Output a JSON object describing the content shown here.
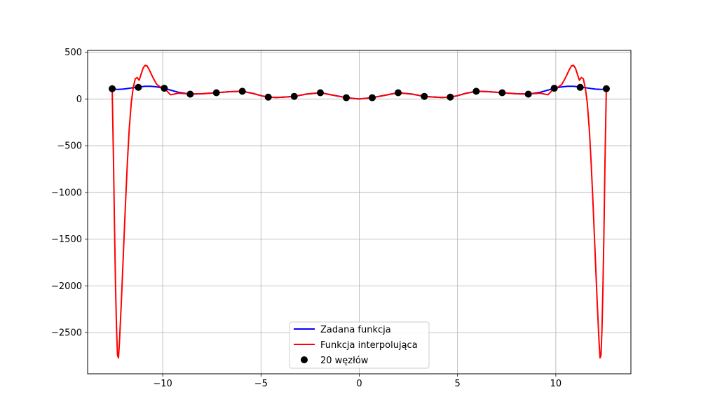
{
  "chart_data": {
    "type": "line",
    "title": "",
    "xlabel": "",
    "ylabel": "",
    "xlim": [
      -13.82,
      13.82
    ],
    "ylim": [
      -2940,
      520
    ],
    "grid": true,
    "x_ticks": [
      -10,
      -5,
      0,
      5,
      10
    ],
    "y_ticks": [
      500,
      0,
      -500,
      -1000,
      -1500,
      -2000,
      -2500
    ],
    "x_tick_labels": [
      "−10",
      "−5",
      "0",
      "5",
      "10"
    ],
    "y_tick_labels": [
      "500",
      "0",
      "−500",
      "−1000",
      "−1500",
      "−2000",
      "−2500"
    ],
    "series": [
      {
        "name": "Zadana funkcja",
        "color": "#0000ff",
        "x": [
          -12.57,
          -12.3,
          -12.0,
          -11.6,
          -11.2,
          -10.9,
          -10.6,
          -10.3,
          -9.92,
          -9.6,
          -9.2,
          -8.6,
          -8.0,
          -7.27,
          -6.6,
          -5.95,
          -5.4,
          -4.9,
          -4.63,
          -4.2,
          -3.7,
          -3.31,
          -2.7,
          -1.98,
          -1.3,
          -0.66,
          0.0,
          0.66,
          1.3,
          1.98,
          2.7,
          3.31,
          3.7,
          4.2,
          4.63,
          4.9,
          5.4,
          5.95,
          6.6,
          7.27,
          8.0,
          8.6,
          9.2,
          9.6,
          9.92,
          10.3,
          10.6,
          10.9,
          11.2,
          11.6,
          12.0,
          12.3,
          12.57
        ],
        "y": [
          110,
          102,
          106,
          118,
          128,
          136,
          136,
          130,
          115,
          95,
          72,
          52,
          56,
          67,
          78,
          83,
          60,
          30,
          20,
          16,
          22,
          28,
          52,
          67,
          40,
          14,
          0,
          14,
          40,
          67,
          52,
          28,
          22,
          16,
          20,
          30,
          60,
          83,
          78,
          67,
          56,
          52,
          72,
          95,
          115,
          130,
          136,
          136,
          128,
          118,
          106,
          102,
          110
        ]
      },
      {
        "name": "Funkcja interpolująca",
        "color": "#ff0000",
        "x": [
          -12.57,
          -12.5,
          -12.45,
          -12.4,
          -12.35,
          -12.3,
          -12.25,
          -12.2,
          -12.1,
          -12.0,
          -11.9,
          -11.8,
          -11.7,
          -11.6,
          -11.5,
          -11.4,
          -11.3,
          -11.2,
          -11.1,
          -11.0,
          -10.9,
          -10.8,
          -10.7,
          -10.6,
          -10.5,
          -10.3,
          -10.1,
          -9.92,
          -9.6,
          -9.2,
          -8.6,
          -8.0,
          -7.27,
          -6.6,
          -5.95,
          -5.4,
          -4.9,
          -4.63,
          -4.2,
          -3.7,
          -3.31,
          -2.7,
          -1.98,
          -1.3,
          -0.66,
          0.0,
          0.66,
          1.3,
          1.98,
          2.7,
          3.31,
          3.7,
          4.2,
          4.63,
          4.9,
          5.4,
          5.95,
          6.6,
          7.27,
          8.0,
          8.6,
          9.2,
          9.6,
          9.92,
          10.1,
          10.3,
          10.5,
          10.6,
          10.7,
          10.8,
          10.9,
          11.0,
          11.1,
          11.2,
          11.3,
          11.4,
          11.5,
          11.6,
          11.7,
          11.8,
          11.9,
          12.0,
          12.1,
          12.2,
          12.25,
          12.3,
          12.35,
          12.4,
          12.45,
          12.5,
          12.57
        ],
        "y": [
          110,
          -700,
          -1400,
          -2000,
          -2450,
          -2740,
          -2770,
          -2600,
          -2150,
          -1650,
          -1150,
          -690,
          -310,
          -40,
          120,
          215,
          230,
          200,
          265,
          330,
          360,
          355,
          320,
          275,
          230,
          155,
          125,
          115,
          45,
          62,
          54,
          57,
          67,
          78,
          83,
          58,
          31,
          20,
          16,
          22,
          28,
          52,
          67,
          40,
          14,
          0,
          14,
          40,
          67,
          52,
          28,
          22,
          16,
          20,
          31,
          58,
          83,
          78,
          67,
          57,
          54,
          62,
          45,
          115,
          125,
          155,
          230,
          275,
          320,
          355,
          360,
          330,
          265,
          200,
          230,
          215,
          120,
          -40,
          -310,
          -690,
          -1150,
          -1650,
          -2150,
          -2600,
          -2770,
          -2740,
          -2450,
          -2000,
          -1400,
          -700,
          110
        ]
      }
    ],
    "nodes": {
      "name": "20 węzłów",
      "color": "#000000",
      "x": [
        -12.57,
        -11.24,
        -9.92,
        -8.6,
        -7.27,
        -5.95,
        -4.63,
        -3.31,
        -1.98,
        -0.66,
        0.66,
        1.98,
        3.31,
        4.63,
        5.95,
        7.27,
        8.6,
        9.92,
        11.24,
        12.57
      ],
      "y": [
        110,
        125,
        115,
        52,
        67,
        83,
        20,
        28,
        67,
        14,
        14,
        67,
        28,
        20,
        83,
        67,
        52,
        115,
        125,
        110
      ]
    },
    "legend": {
      "position": "lower-center",
      "entries": [
        "Zadana funkcja",
        "Funkcja interpolująca",
        "20 węzłów"
      ]
    }
  }
}
